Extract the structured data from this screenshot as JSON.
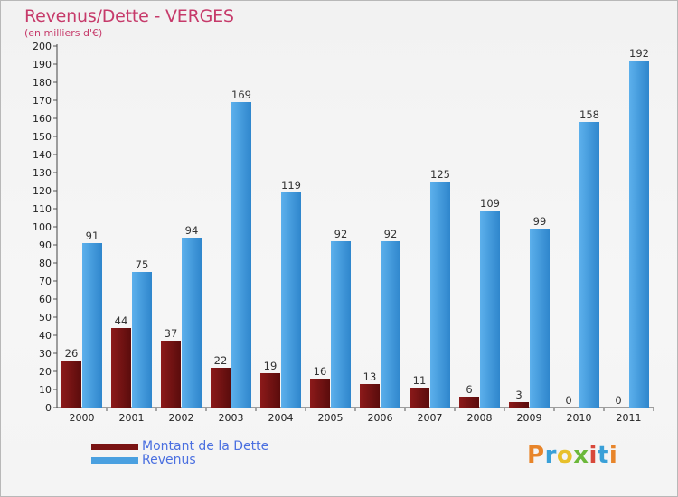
{
  "title": "Revenus/Dette - VERGES",
  "subtitle": "(en milliers d'€)",
  "colors": {
    "dette": "#7a1414",
    "revenus": "#4aa0e0",
    "title": "#c63a6a",
    "legend_text": "#4a6fe0"
  },
  "legend": [
    {
      "label": "Montant de la Dette",
      "color": "#7a1414"
    },
    {
      "label": "Revenus",
      "color": "#4aa0e0"
    }
  ],
  "logo": {
    "text": "Proxiti"
  },
  "chart_data": {
    "type": "bar",
    "title": "Revenus/Dette - VERGES",
    "subtitle": "(en milliers d'€)",
    "categories": [
      "2000",
      "2001",
      "2002",
      "2003",
      "2004",
      "2005",
      "2006",
      "2007",
      "2008",
      "2009",
      "2010",
      "2011"
    ],
    "series": [
      {
        "name": "Montant de la Dette",
        "values": [
          26,
          44,
          37,
          22,
          19,
          16,
          13,
          11,
          6,
          3,
          0,
          0
        ]
      },
      {
        "name": "Revenus",
        "values": [
          91,
          75,
          94,
          169,
          119,
          92,
          92,
          125,
          109,
          99,
          158,
          192
        ]
      }
    ],
    "ylim": [
      0,
      200
    ],
    "ytick_step": 10,
    "grid": false,
    "legend_position": "bottom-left"
  }
}
